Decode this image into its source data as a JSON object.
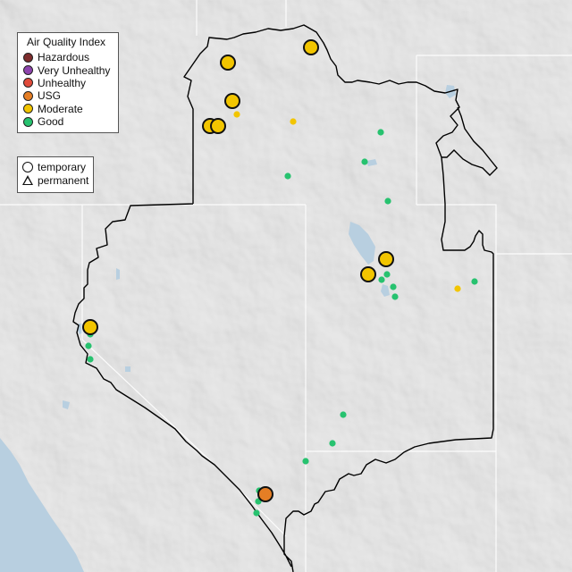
{
  "legend": {
    "title": "Air Quality Index",
    "categories": [
      {
        "label": "Hazardous",
        "color": "#7e2d2d"
      },
      {
        "label": "Very Unhealthy",
        "color": "#8e44ad"
      },
      {
        "label": "Unhealthy",
        "color": "#e04a3a"
      },
      {
        "label": "USG",
        "color": "#e57e25"
      },
      {
        "label": "Moderate",
        "color": "#f2c500"
      },
      {
        "label": "Good",
        "color": "#27c26f"
      }
    ],
    "shapes": {
      "temporary": "temporary",
      "permanent": "permanent"
    }
  },
  "map": {
    "basemap": "shaded-relief",
    "land_color": "#e6e6e6",
    "water_color": "#b8cfe0",
    "boundary_color": "#000000",
    "state_line_color": "#ffffff"
  }
}
